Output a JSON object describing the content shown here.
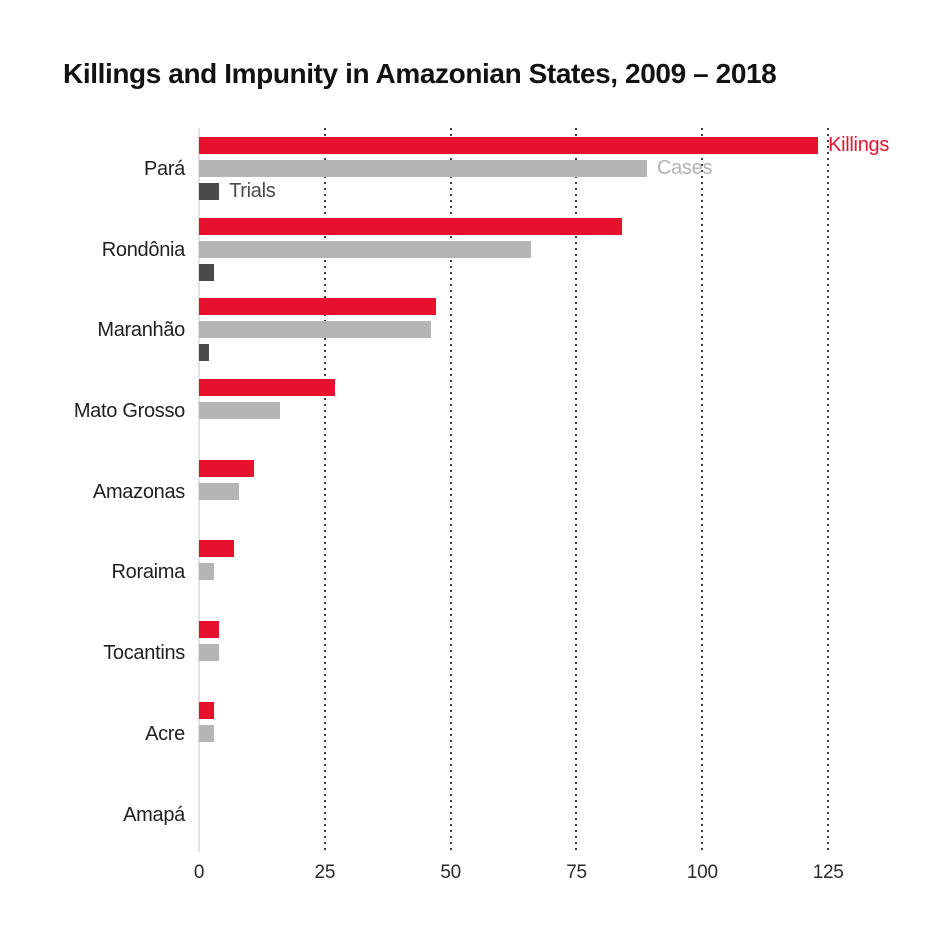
{
  "title": "Killings and Impunity in Amazonian States, 2009 – 2018",
  "colors": {
    "killings": "#e8112d",
    "cases": "#b5b5b5",
    "trials": "#4a4a4a",
    "gridline": "#3d3d3d",
    "baseline": "#e2e2e2",
    "text": "#1f1f1f"
  },
  "chart_data": {
    "type": "bar",
    "orientation": "horizontal",
    "title": "Killings and Impunity in Amazonian States, 2009 – 2018",
    "categories": [
      "Pará",
      "Rondônia",
      "Maranhão",
      "Mato Grosso",
      "Amazonas",
      "Roraima",
      "Tocantins",
      "Acre",
      "Amapá"
    ],
    "series": [
      {
        "name": "Killings",
        "color": "#e8112d",
        "label_color": "#e8112d",
        "values": [
          123,
          84,
          47,
          27,
          11,
          7,
          4,
          3,
          0
        ]
      },
      {
        "name": "Cases",
        "color": "#b5b5b5",
        "label_color": "#b3b3b3",
        "values": [
          89,
          66,
          46,
          16,
          8,
          3,
          4,
          3,
          0
        ]
      },
      {
        "name": "Trials",
        "color": "#4a4a4a",
        "label_color": "#4a4a4a",
        "values": [
          4,
          3,
          2,
          0,
          0,
          0,
          0,
          0,
          0
        ]
      }
    ],
    "xticks": [
      0,
      25,
      50,
      75,
      100,
      125
    ],
    "xlim": [
      0,
      135.3
    ],
    "xlabel": "",
    "ylabel": "",
    "grid": "vertical-dotted",
    "legend_position": "inline-first-group"
  }
}
